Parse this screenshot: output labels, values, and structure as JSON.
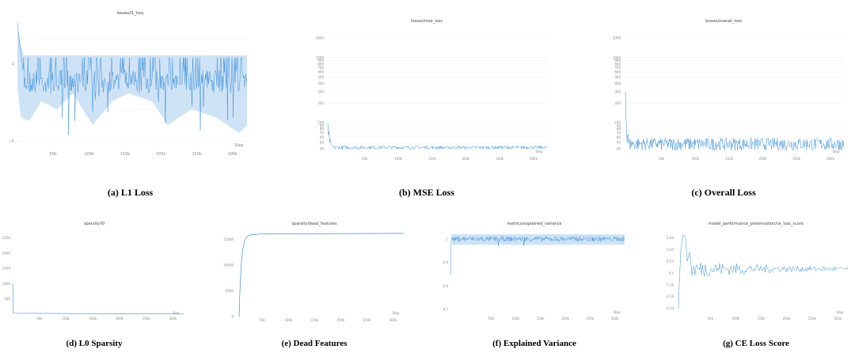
{
  "figures": [
    {
      "id": "l1",
      "title": "losses/l1_loss",
      "caption": "(a) L1 Loss"
    },
    {
      "id": "mse",
      "title": "losses/mse_loss",
      "caption": "(b) MSE Loss"
    },
    {
      "id": "overall",
      "title": "losses/overall_loss",
      "caption": "(c) Overall Loss"
    },
    {
      "id": "l0",
      "title": "sparsity/l0",
      "caption": "(d) L0 Sparsity"
    },
    {
      "id": "dead",
      "title": "sparsity/dead_features",
      "caption": "(e) Dead Features"
    },
    {
      "id": "ev",
      "title": "metrics/explained_variance",
      "caption": "(f) Explained Variance"
    },
    {
      "id": "ce",
      "title": "model_performance_preservation/ce_loss_score",
      "caption": "(g) CE Loss Score"
    }
  ],
  "step_label": "Step",
  "colors": {
    "line": "#3a8fd9",
    "band": "#cfe3f6",
    "grid": "#eeeeee"
  },
  "chart_data": [
    {
      "type": "line",
      "title": "losses/l1_loss",
      "x_ticks": [
        "50k",
        "100k",
        "150k",
        "200k",
        "250k",
        "300k"
      ],
      "y_ticks": [
        "1",
        "1e-5"
      ],
      "x_range": [
        0,
        320000
      ],
      "y_scale": "log",
      "noise_level": 1,
      "noise_range": "1e-5 to 1"
    },
    {
      "type": "line",
      "title": "losses/mse_loss",
      "x_ticks": [
        "50k",
        "100k",
        "150k",
        "200k",
        "250k",
        "300k"
      ],
      "y_ticks": [
        "2000",
        "1000",
        "900",
        "800",
        "700",
        "600",
        "500",
        "400",
        "300",
        "200",
        "100",
        "90",
        "80",
        "70",
        "60",
        "50",
        "40"
      ],
      "y_scale": "log",
      "x_range": [
        0,
        320000
      ],
      "series_start": 100,
      "series_plateau": 42
    },
    {
      "type": "line",
      "title": "losses/overall_loss",
      "x_ticks": [
        "50k",
        "100k",
        "150k",
        "200k",
        "250k",
        "300k"
      ],
      "y_ticks": [
        "2000",
        "1000",
        "900",
        "800",
        "700",
        "600",
        "500",
        "400",
        "300",
        "200",
        "100",
        "90",
        "80",
        "70",
        "60",
        "50",
        "40"
      ],
      "y_scale": "log",
      "x_range": [
        0,
        320000
      ],
      "series_start": 300,
      "series_plateau": 48
    },
    {
      "type": "line",
      "title": "sparsity/l0",
      "x_ticks": [
        "50k",
        "100k",
        "150k",
        "200k",
        "250k",
        "300k"
      ],
      "y_ticks": [
        "2500",
        "2000",
        "1500",
        "1000",
        "500"
      ],
      "x_range": [
        0,
        320000
      ],
      "y_range": [
        0,
        2700
      ],
      "series_start": 1000,
      "series_plateau": 5
    },
    {
      "type": "line",
      "title": "sparsity/dead_features",
      "x_ticks": [
        "50k",
        "100k",
        "150k",
        "200k",
        "250k",
        "300k"
      ],
      "y_ticks": [
        "15000",
        "10000",
        "5000",
        "0"
      ],
      "x_range": [
        0,
        320000
      ],
      "y_range": [
        0,
        16500
      ],
      "series_start": 0,
      "series_plateau": 16000
    },
    {
      "type": "line",
      "title": "metrics/explained_variance",
      "x_ticks": [
        "50k",
        "100k",
        "150k",
        "200k",
        "250k",
        "300k"
      ],
      "y_ticks": [
        "1",
        "0.9",
        "0.8",
        "0.7"
      ],
      "x_range": [
        0,
        320000
      ],
      "y_range": [
        0.68,
        1.03
      ],
      "series_plateau": 1.0
    },
    {
      "type": "line",
      "title": "model_performance_preservation/ce_loss_score",
      "x_ticks": [
        "50k",
        "100k",
        "150k",
        "200k",
        "250k",
        "300k"
      ],
      "y_ticks": [
        "0.26",
        "0.24",
        "0.22",
        "0.2",
        "0.18",
        "0.16",
        "0.14"
      ],
      "x_range": [
        0,
        320000
      ],
      "y_range": [
        0.13,
        0.27
      ],
      "series_peak": 0.265,
      "series_plateau": 0.207
    }
  ]
}
